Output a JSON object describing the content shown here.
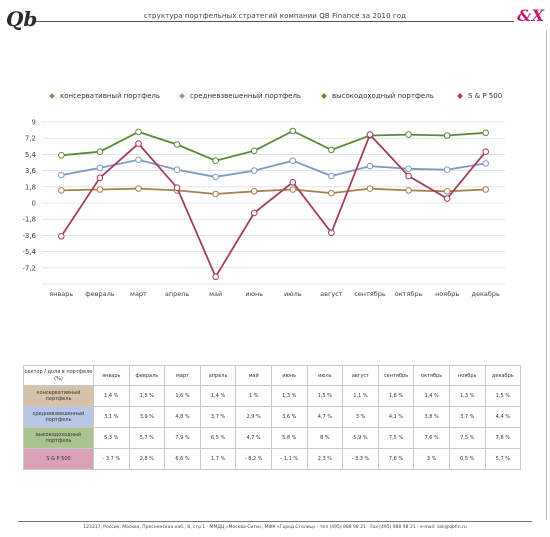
{
  "header": {
    "title": "структура портфельных стратегий компании QB Finance за 2010 год",
    "logo_left": "Qb",
    "logo_right": "&X"
  },
  "legend": [
    {
      "label": "консервативный портфель",
      "color": "#a67f52"
    },
    {
      "label": "средневзвешенный портфель",
      "color": "#7f98cc"
    },
    {
      "label": "высокодоходный портфель",
      "color": "#5a8a3a"
    },
    {
      "label": "S & P 500",
      "color": "#a33d5c"
    }
  ],
  "chart_data": {
    "type": "line",
    "categories": [
      "январь",
      "февраль",
      "март",
      "апрель",
      "май",
      "июнь",
      "июль",
      "август",
      "сентябрь",
      "октябрь",
      "ноябрь",
      "декабрь"
    ],
    "ylim": [
      -9,
      9
    ],
    "yticks": [
      9,
      7.2,
      5.4,
      3.6,
      1.8,
      0,
      -1.8,
      -3.6,
      -5.4,
      -7.2,
      -9
    ],
    "ytick_labels": [
      "9",
      "7,2",
      "5,4",
      "3,6",
      "1,8",
      "0",
      "-1,8",
      "-3,6",
      "-5,4",
      "-7,2",
      ""
    ],
    "grid": true,
    "series": [
      {
        "name": "консервативный портфель",
        "color": "#a67f52",
        "values": [
          1.4,
          1.5,
          1.6,
          1.4,
          1,
          1.3,
          1.5,
          1.1,
          1.6,
          1.4,
          1.3,
          1.5
        ]
      },
      {
        "name": "средневзвешенный портфель",
        "color": "#7f98cc",
        "values": [
          3.1,
          3.9,
          4.8,
          3.7,
          2.9,
          3.6,
          4.7,
          3,
          4.1,
          3.8,
          3.7,
          4.4
        ]
      },
      {
        "name": "высокодоходный портфель",
        "color": "#5a8a3a",
        "values": [
          5.3,
          5.7,
          7.9,
          6.5,
          4.7,
          5.8,
          8,
          5.9,
          7.5,
          7.6,
          7.5,
          7.8
        ]
      },
      {
        "name": "S & P 500",
        "color": "#a33d5c",
        "values": [
          -3.7,
          2.8,
          6.6,
          1.7,
          -8.2,
          -1.1,
          2.3,
          -3.3,
          7.6,
          3,
          0.5,
          5.7
        ]
      }
    ]
  },
  "table": {
    "corner_header": "сектор / доля в портфеле (%)",
    "months": [
      "январь",
      "февраль",
      "март",
      "апрель",
      "май",
      "июнь",
      "июль",
      "август",
      "сентябрь",
      "октябрь",
      "ноябрь",
      "декабрь"
    ],
    "rows": [
      {
        "label": "консервативный портфель",
        "color": "#d6c2a6",
        "cells": [
          "1,4 %",
          "1,5 %",
          "1,6 %",
          "1,4 %",
          "1 %",
          "1,3 %",
          "1,5 %",
          "1,1 %",
          "1,6 %",
          "1,4 %",
          "1,3 %",
          "1,5 %"
        ]
      },
      {
        "label": "средневзвешенный портфель",
        "color": "#b7c7e6",
        "cells": [
          "3,1 %",
          "3,9 %",
          "4,8 %",
          "3,7 %",
          "2,9 %",
          "3,6 %",
          "4,7 %",
          "3 %",
          "4,1 %",
          "3,8 %",
          "3,7 %",
          "4,4 %"
        ]
      },
      {
        "label": "высокодоходный портфель",
        "color": "#a9c48e",
        "cells": [
          "5,3 %",
          "5,7 %",
          "7,9 %",
          "6,5 %",
          "4,7 %",
          "5,8 %",
          "8 %",
          "5,9 %",
          "7,5 %",
          "7,6 %",
          "7,5 %",
          "7,8 %"
        ]
      },
      {
        "label": "S & P 500",
        "color": "#d9a2b6",
        "cells": [
          "- 3,7 %",
          "2,8 %",
          "6,6 %",
          "1,7 %",
          "- 8,2 %",
          "- 1,1 %",
          "2,3 %",
          "- 3,3 %",
          "7,6 %",
          "3 %",
          "0,5 %",
          "5,7 %"
        ]
      }
    ]
  },
  "footer": {
    "text": "123317, Россия, Москва, Пресненская наб., 8, стр.1 · ММДЦ «Москва-Сити», МФК «Город Столиц» · тел (495) 988 98 21 · Fax (495) 988 98 21 · e-mail: ask@qbfin.ru"
  }
}
